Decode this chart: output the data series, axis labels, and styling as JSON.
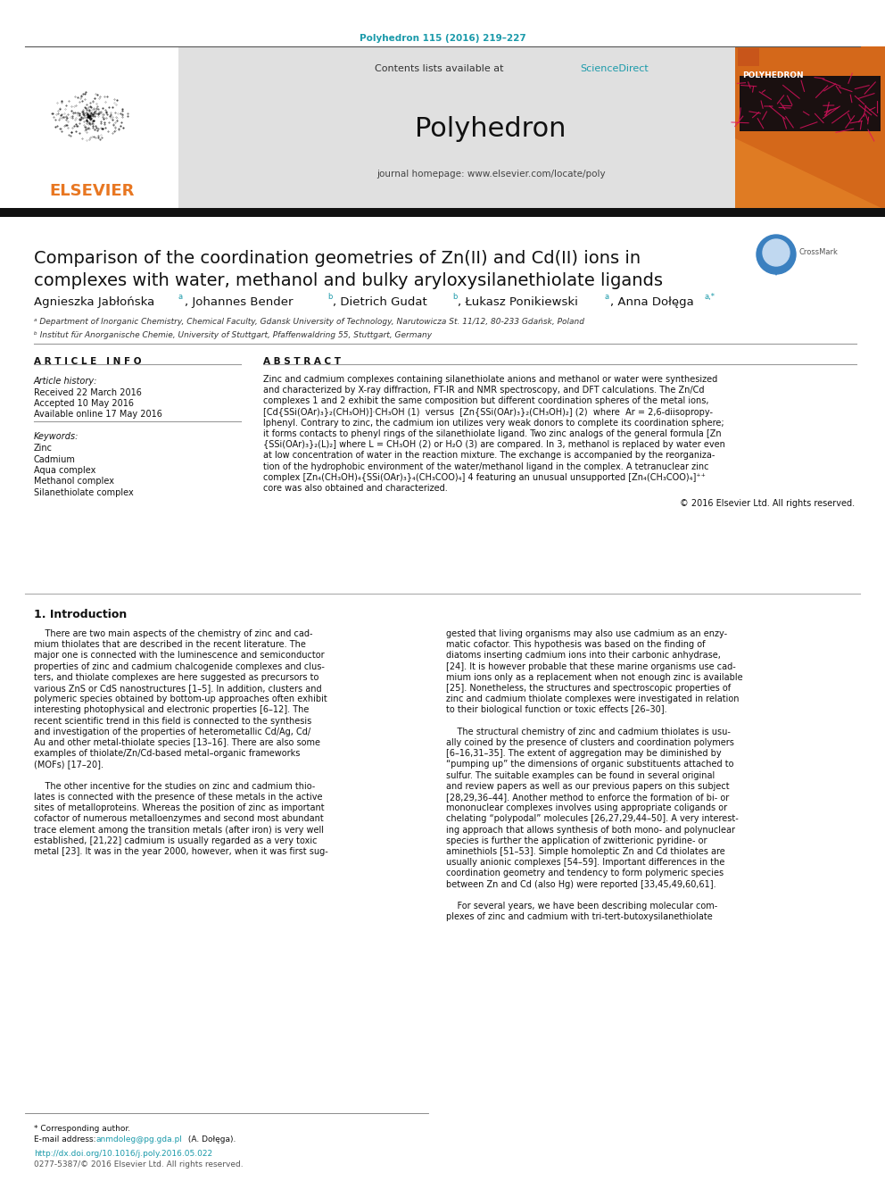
{
  "journal_ref": "Polyhedron 115 (2016) 219–227",
  "journal_ref_color": "#1b9aaa",
  "sciencedirect_color": "#1b9aaa",
  "journal_name": "Polyhedron",
  "journal_homepage": "journal homepage: www.elsevier.com/locate/poly",
  "header_bg": "#e0e0e0",
  "elsevier_color": "#e87722",
  "title_line1": "Comparison of the coordination geometries of Zn(II) and Cd(II) ions in",
  "title_line2": "complexes with water, methanol and bulky aryloxysilanethiolate ligands",
  "affil_a": "ᵃ Department of Inorganic Chemistry, Chemical Faculty, Gdansk University of Technology, Narutowicza St. 11/12, 80-233 Gdańsk, Poland",
  "affil_b": "ᵇ Institut für Anorganische Chemie, University of Stuttgart, Pfaffenwaldring 55, Stuttgart, Germany",
  "article_info_header": "A R T I C L E   I N F O",
  "article_history_label": "Article history:",
  "received": "Received 22 March 2016",
  "accepted": "Accepted 10 May 2016",
  "available": "Available online 17 May 2016",
  "keywords_label": "Keywords:",
  "keywords": [
    "Zinc",
    "Cadmium",
    "Aqua complex",
    "Methanol complex",
    "Silanethiolate complex"
  ],
  "abstract_header": "A B S T R A C T",
  "abstract_lines": [
    "Zinc and cadmium complexes containing silanethiolate anions and methanol or water were synthesized",
    "and characterized by X-ray diffraction, FT-IR and NMR spectroscopy, and DFT calculations. The Zn/Cd",
    "complexes 1 and 2 exhibit the same composition but different coordination spheres of the metal ions,",
    "[Cd{SSi(OAr)₃}₂(CH₃OH)]·CH₃OH (1)  versus  [Zn{SSi(OAr)₃}₂(CH₃OH)₂] (2)  where  Ar = 2,6-diisopropy-",
    "lphenyl. Contrary to zinc, the cadmium ion utilizes very weak donors to complete its coordination sphere;",
    "it forms contacts to phenyl rings of the silanethiolate ligand. Two zinc analogs of the general formula [Zn",
    "{SSi(OAr)₃}₂(L)₂] where L = CH₃OH (2) or H₂O (3) are compared. In 3, methanol is replaced by water even",
    "at low concentration of water in the reaction mixture. The exchange is accompanied by the reorganiza-",
    "tion of the hydrophobic environment of the water/methanol ligand in the complex. A tetranuclear zinc",
    "complex [Zn₄(CH₃OH)₄{SSi(OAr)₃}₄(CH₃COO)₄] 4 featuring an unusual unsupported [Zn₄(CH₃COO)₄]⁺⁺",
    "core was also obtained and characterized."
  ],
  "copyright_line": "© 2016 Elsevier Ltd. All rights reserved.",
  "intro_header": "1. Introduction",
  "col1_lines": [
    "    There are two main aspects of the chemistry of zinc and cad-",
    "mium thiolates that are described in the recent literature. The",
    "major one is connected with the luminescence and semiconductor",
    "properties of zinc and cadmium chalcogenide complexes and clus-",
    "ters, and thiolate complexes are here suggested as precursors to",
    "various ZnS or CdS nanostructures [1–5]. In addition, clusters and",
    "polymeric species obtained by bottom-up approaches often exhibit",
    "interesting photophysical and electronic properties [6–12]. The",
    "recent scientific trend in this field is connected to the synthesis",
    "and investigation of the properties of heterometallic Cd/Ag, Cd/",
    "Au and other metal-thiolate species [13–16]. There are also some",
    "examples of thiolate/Zn/Cd-based metal–organic frameworks",
    "(MOFs) [17–20].",
    "",
    "    The other incentive for the studies on zinc and cadmium thio-",
    "lates is connected with the presence of these metals in the active",
    "sites of metalloproteins. Whereas the position of zinc as important",
    "cofactor of numerous metalloenzymes and second most abundant",
    "trace element among the transition metals (after iron) is very well",
    "established, [21,22] cadmium is usually regarded as a very toxic",
    "metal [23]. It was in the year 2000, however, when it was first sug-"
  ],
  "col2_lines": [
    "gested that living organisms may also use cadmium as an enzy-",
    "matic cofactor. This hypothesis was based on the finding of",
    "diatoms inserting cadmium ions into their carbonic anhydrase,",
    "[24]. It is however probable that these marine organisms use cad-",
    "mium ions only as a replacement when not enough zinc is available",
    "[25]. Nonetheless, the structures and spectroscopic properties of",
    "zinc and cadmium thiolate complexes were investigated in relation",
    "to their biological function or toxic effects [26–30].",
    "",
    "    The structural chemistry of zinc and cadmium thiolates is usu-",
    "ally coined by the presence of clusters and coordination polymers",
    "[6–16,31–35]. The extent of aggregation may be diminished by",
    "“pumping up” the dimensions of organic substituents attached to",
    "sulfur. The suitable examples can be found in several original",
    "and review papers as well as our previous papers on this subject",
    "[28,29,36–44]. Another method to enforce the formation of bi- or",
    "mononuclear complexes involves using appropriate coligands or",
    "chelating “polypodal” molecules [26,27,29,44–50]. A very interest-",
    "ing approach that allows synthesis of both mono- and polynuclear",
    "species is further the application of zwitterionic pyridine- or",
    "aminethiols [51–53]. Simple homoleptic Zn and Cd thiolates are",
    "usually anionic complexes [54–59]. Important differences in the",
    "coordination geometry and tendency to form polymeric species",
    "between Zn and Cd (also Hg) were reported [33,45,49,60,61].",
    "",
    "    For several years, we have been describing molecular com-",
    "plexes of zinc and cadmium with tri-tert-butoxysilanethiolate"
  ],
  "footer_corr": "* Corresponding author.",
  "footer_email_label": "E-mail address: ",
  "footer_email": "anmdoleg@pg.gda.pl",
  "footer_email_suffix": " (A. Dołęga).",
  "footer_doi": "http://dx.doi.org/10.1016/j.poly.2016.05.022",
  "footer_rights": "0277-5387/© 2016 Elsevier Ltd. All rights reserved.",
  "link_color": "#1b9aaa",
  "black": "#111111",
  "white": "#ffffff",
  "gray_text": "#555555"
}
